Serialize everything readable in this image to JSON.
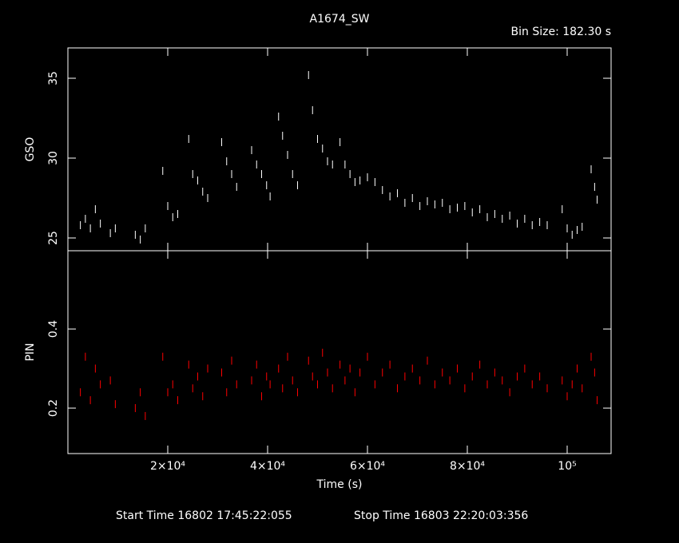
{
  "chart_data": [
    {
      "type": "scatter",
      "title": "A1674_SW",
      "subtitle": "Bin Size: 182.30 s",
      "y_label": "GSO",
      "color": "#ffffff",
      "xlim": [
        0,
        108800
      ],
      "ylim": [
        24.2,
        36.9
      ],
      "yticks": [
        25,
        30,
        35
      ],
      "x": [
        2500,
        3500,
        4500,
        5500,
        6500,
        8500,
        9500,
        13500,
        14500,
        15500,
        19000,
        20000,
        21000,
        22000,
        24200,
        25000,
        26000,
        27000,
        28000,
        30800,
        31800,
        32800,
        33800,
        36800,
        37800,
        38800,
        39800,
        40500,
        42200,
        43000,
        44000,
        45000,
        46000,
        48200,
        49000,
        50000,
        51000,
        52000,
        53000,
        54500,
        55500,
        56500,
        57500,
        58500,
        60000,
        61500,
        63000,
        64500,
        66000,
        67500,
        69000,
        70500,
        72000,
        73500,
        75000,
        76500,
        78000,
        79500,
        81000,
        82500,
        84000,
        85500,
        87000,
        88500,
        90000,
        91500,
        93000,
        94500,
        96000,
        99000,
        100000,
        101000,
        102000,
        103000,
        104800,
        105500,
        106000
      ],
      "values": [
        25.8,
        26.2,
        25.6,
        26.8,
        25.9,
        25.3,
        25.6,
        25.2,
        24.9,
        25.6,
        29.2,
        27.0,
        26.3,
        26.5,
        31.2,
        29.0,
        28.6,
        27.9,
        27.5,
        31.0,
        29.8,
        29.0,
        28.2,
        30.5,
        29.6,
        29.0,
        28.3,
        27.6,
        32.6,
        31.4,
        30.2,
        29.0,
        28.3,
        35.2,
        33.0,
        31.2,
        30.6,
        29.8,
        29.6,
        31.0,
        29.6,
        29.0,
        28.5,
        28.6,
        28.8,
        28.5,
        28.0,
        27.6,
        27.8,
        27.2,
        27.5,
        27.0,
        27.3,
        27.1,
        27.2,
        26.8,
        26.9,
        27.0,
        26.6,
        26.8,
        26.3,
        26.5,
        26.2,
        26.4,
        25.9,
        26.2,
        25.8,
        26.0,
        25.8,
        26.8,
        25.6,
        25.2,
        25.5,
        25.7,
        29.3,
        28.2,
        27.4
      ]
    },
    {
      "type": "scatter",
      "y_label": "PIN",
      "x_label": "Time (s)",
      "color": "#ff0000",
      "annotations": [
        "Start Time 16802 17:45:22:055",
        "Stop Time 16803 22:20:03:356"
      ],
      "xlim": [
        0,
        108800
      ],
      "ylim": [
        0.085,
        0.598
      ],
      "yticks": [
        0.2,
        0.4
      ],
      "xticks": [
        {
          "value": 20000,
          "label": "2×10⁴"
        },
        {
          "value": 40000,
          "label": "4×10⁴"
        },
        {
          "value": 60000,
          "label": "6×10⁴"
        },
        {
          "value": 80000,
          "label": "8×10⁴"
        },
        {
          "value": 100000,
          "label": "10⁵"
        }
      ],
      "x": [
        2500,
        3500,
        4500,
        5500,
        6500,
        8500,
        9500,
        13500,
        14500,
        15500,
        19000,
        20000,
        21000,
        22000,
        24200,
        25000,
        26000,
        27000,
        28000,
        30800,
        31800,
        32800,
        33800,
        36800,
        37800,
        38800,
        39800,
        40500,
        42200,
        43000,
        44000,
        45000,
        46000,
        48200,
        49000,
        50000,
        51000,
        52000,
        53000,
        54500,
        55500,
        56500,
        57500,
        58500,
        60000,
        61500,
        63000,
        64500,
        66000,
        67500,
        69000,
        70500,
        72000,
        73500,
        75000,
        76500,
        78000,
        79500,
        81000,
        82500,
        84000,
        85500,
        87000,
        88500,
        90000,
        91500,
        93000,
        94500,
        96000,
        99000,
        100000,
        101000,
        102000,
        103000,
        104800,
        105500,
        106000
      ],
      "values": [
        0.24,
        0.33,
        0.22,
        0.3,
        0.26,
        0.27,
        0.21,
        0.2,
        0.24,
        0.18,
        0.33,
        0.24,
        0.26,
        0.22,
        0.31,
        0.25,
        0.28,
        0.23,
        0.3,
        0.29,
        0.24,
        0.32,
        0.26,
        0.27,
        0.31,
        0.23,
        0.28,
        0.26,
        0.3,
        0.25,
        0.33,
        0.27,
        0.24,
        0.32,
        0.28,
        0.26,
        0.34,
        0.29,
        0.25,
        0.31,
        0.27,
        0.3,
        0.24,
        0.29,
        0.33,
        0.26,
        0.29,
        0.31,
        0.25,
        0.28,
        0.3,
        0.27,
        0.32,
        0.26,
        0.29,
        0.27,
        0.3,
        0.25,
        0.28,
        0.31,
        0.26,
        0.29,
        0.27,
        0.24,
        0.28,
        0.3,
        0.26,
        0.28,
        0.25,
        0.27,
        0.23,
        0.26,
        0.3,
        0.25,
        0.33,
        0.29,
        0.22
      ]
    }
  ]
}
